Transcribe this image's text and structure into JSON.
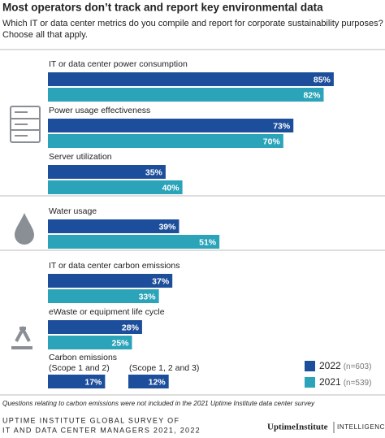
{
  "chart_data": {
    "type": "bar",
    "orientation": "horizontal",
    "title": "Most operators don’t track and report key environmental data",
    "subtitle": [
      "Which IT or data center metrics do you compile and report for corporate sustainability purposes?",
      "Choose all that apply."
    ],
    "groups": [
      {
        "categories": [
          "IT or data center power consumption",
          "Power usage effectiveness",
          "Server utilization"
        ]
      },
      {
        "categories": [
          "Water usage"
        ]
      },
      {
        "categories": [
          "IT or data center carbon emissions",
          "eWaste or equipment life cycle"
        ],
        "paired": {
          "title": "Carbon emissions",
          "categories": [
            "(Scope 1 and 2)",
            "(Scope 1, 2 and 3)"
          ]
        }
      }
    ],
    "series": [
      {
        "name": "2022",
        "note": "(n=603)",
        "color": "#1d4e9b",
        "values": [
          85,
          73,
          35,
          39,
          37,
          28,
          17,
          12
        ],
        "value_labels": [
          "85%",
          "73%",
          "35%",
          "39%",
          "37%",
          "28%",
          "17%",
          "12%"
        ]
      },
      {
        "name": "2021",
        "note": "(n=539)",
        "color": "#2ba3b9",
        "values": [
          82,
          70,
          40,
          51,
          33,
          25,
          null,
          null
        ],
        "value_labels": [
          "82%",
          "70%",
          "40%",
          "51%",
          "33%",
          "25%",
          null,
          null
        ]
      }
    ],
    "legend_position": "bottom-right",
    "footnote": "Questions relating to carbon emissions were not included in the 2021 Uptime Institute data center survey",
    "source": [
      "UPTIME INSTITUTE GLOBAL SURVEY OF",
      "IT AND DATA CENTER MANAGERS 2021, 2022"
    ],
    "logo": {
      "brand": "UptimeInstitute",
      "product": "INTELLIGENCE"
    }
  }
}
